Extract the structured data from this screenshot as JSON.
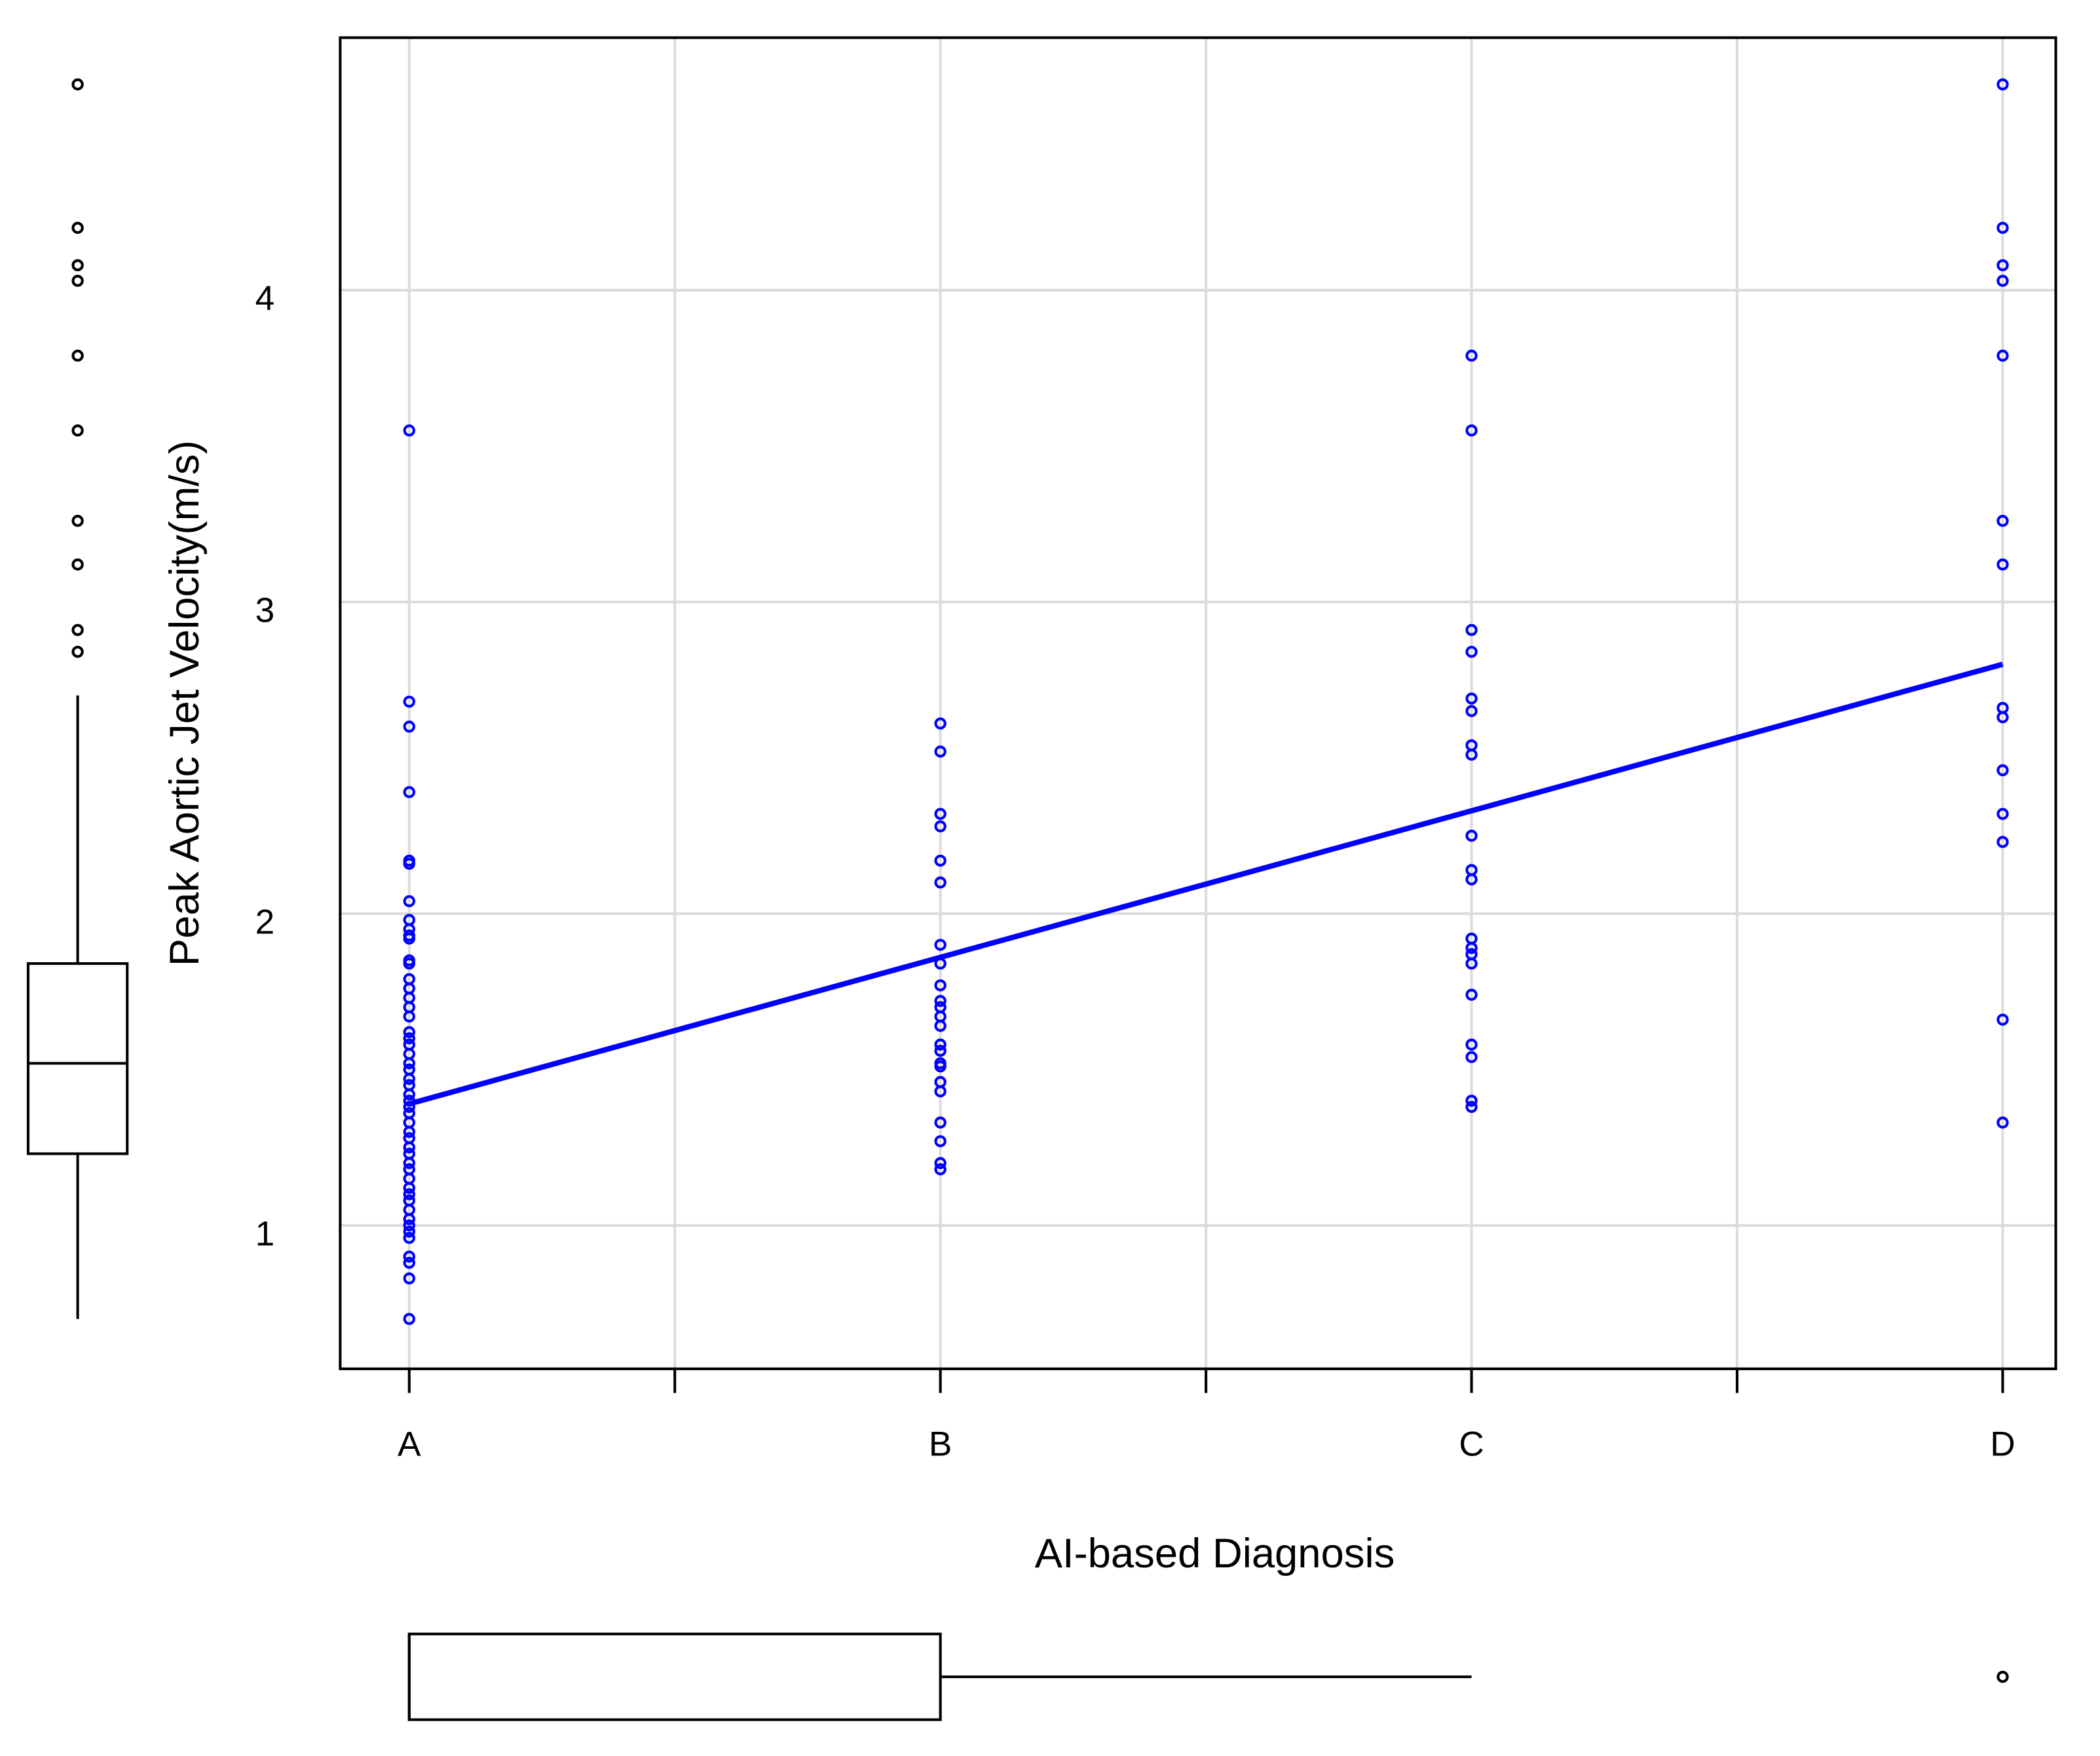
{
  "chart_data": {
    "type": "scatter",
    "x_label": "AI-based Diagnosis",
    "y_label": "Peak Aortic Jet Velocity(m/s)",
    "color": "#0000ff",
    "grid": true,
    "xlim": [
      0.87,
      4.1
    ],
    "ylim": [
      0.54,
      4.81
    ],
    "xticks": [
      {
        "value": 1,
        "label": "A"
      },
      {
        "value": 1.5,
        "label": null
      },
      {
        "value": 2,
        "label": "B"
      },
      {
        "value": 2.5,
        "label": null
      },
      {
        "value": 3,
        "label": "C"
      },
      {
        "value": 3.5,
        "label": null
      },
      {
        "value": 4,
        "label": "D"
      }
    ],
    "yticks": [
      1,
      2,
      3,
      4
    ],
    "x": [
      1,
      1,
      1,
      1,
      1,
      1,
      1,
      1,
      1,
      1,
      1,
      1,
      1,
      1,
      1,
      1,
      1,
      1,
      1,
      1,
      1,
      1,
      1,
      1,
      1,
      1,
      1,
      1,
      1,
      1,
      1,
      1,
      1,
      1,
      1,
      1,
      1,
      1,
      1,
      1,
      1,
      1,
      1,
      1,
      1,
      1,
      1,
      1,
      1,
      1,
      2,
      2,
      2,
      2,
      2,
      2,
      2,
      2,
      2,
      2,
      2,
      2,
      2,
      2,
      2,
      2,
      2,
      2,
      2,
      2,
      2,
      2,
      2,
      3,
      3,
      3,
      3,
      3,
      3,
      3,
      3,
      3,
      3,
      3,
      3,
      3,
      3,
      3,
      3,
      3,
      3,
      3,
      3,
      4,
      4,
      4,
      4,
      4,
      4,
      4,
      4,
      4,
      4,
      4,
      4,
      4,
      4
    ],
    "values": [
      3.55,
      2.68,
      2.6,
      2.39,
      2.17,
      2.16,
      2.04,
      1.98,
      1.95,
      1.93,
      1.92,
      1.85,
      1.84,
      1.79,
      1.76,
      1.73,
      1.7,
      1.67,
      1.62,
      1.6,
      1.58,
      1.55,
      1.52,
      1.5,
      1.47,
      1.45,
      1.42,
      1.4,
      1.38,
      1.36,
      1.33,
      1.3,
      1.28,
      1.25,
      1.23,
      1.2,
      1.18,
      1.15,
      1.12,
      1.1,
      1.08,
      1.05,
      1.02,
      1.0,
      0.98,
      0.96,
      0.9,
      0.88,
      0.83,
      0.7,
      2.61,
      2.52,
      2.32,
      2.28,
      2.17,
      2.1,
      1.9,
      1.84,
      1.77,
      1.72,
      1.7,
      1.67,
      1.64,
      1.58,
      1.56,
      1.52,
      1.51,
      1.46,
      1.43,
      1.33,
      1.27,
      1.2,
      1.18,
      3.79,
      3.55,
      2.91,
      2.84,
      2.69,
      2.65,
      2.54,
      2.51,
      2.25,
      2.14,
      2.11,
      1.92,
      1.89,
      1.87,
      1.84,
      1.74,
      1.58,
      1.54,
      1.4,
      1.38,
      4.66,
      4.2,
      4.08,
      4.03,
      3.79,
      3.26,
      3.12,
      2.66,
      2.63,
      2.46,
      2.32,
      2.23,
      1.66,
      1.33
    ],
    "fit": {
      "x": [
        1,
        4
      ],
      "values": [
        1.39,
        2.8
      ]
    },
    "y_boxplot": {
      "whisker_low": 0.7,
      "q1": 1.23,
      "median": 1.52,
      "q3": 1.84,
      "whisker_high": 2.7,
      "outliers": [
        4.66,
        4.2,
        4.08,
        4.03,
        3.79,
        3.55,
        3.26,
        3.12,
        2.91,
        2.84
      ]
    },
    "x_boxplot": {
      "whisker_low": 1,
      "q1": 1,
      "median": 1,
      "q3": 2,
      "whisker_high": 3,
      "outliers": [
        4
      ]
    }
  }
}
